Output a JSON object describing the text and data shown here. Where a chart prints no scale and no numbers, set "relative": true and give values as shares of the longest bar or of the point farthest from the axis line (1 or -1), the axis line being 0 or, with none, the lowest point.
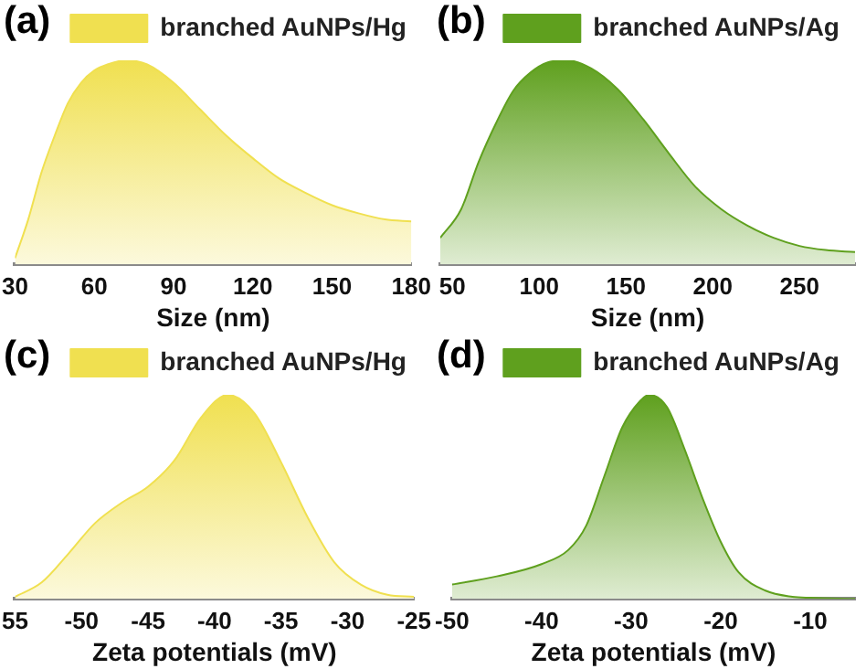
{
  "chart_data": [
    {
      "type": "area",
      "title": "(a)",
      "xlabel": "Size (nm)",
      "relative": true,
      "legend": "top right",
      "grid": false,
      "marker": "none",
      "xlim": [
        30,
        180
      ],
      "xticks": [
        30,
        60,
        90,
        120,
        150,
        180
      ],
      "series": [
        {
          "name": "branched AuNPs/Hg",
          "color": "#f0e050",
          "x": [
            30,
            35,
            40,
            45,
            50,
            55,
            60,
            65,
            72,
            80,
            90,
            100,
            110,
            120,
            130,
            140,
            150,
            160,
            170,
            180
          ],
          "values": [
            0.03,
            0.22,
            0.45,
            0.63,
            0.79,
            0.89,
            0.95,
            0.98,
            1,
            0.98,
            0.89,
            0.76,
            0.63,
            0.52,
            0.42,
            0.35,
            0.29,
            0.25,
            0.22,
            0.21
          ]
        }
      ]
    },
    {
      "type": "area",
      "title": "(b)",
      "xlabel": "Size (nm)",
      "relative": true,
      "legend": "top right",
      "grid": false,
      "marker": "none",
      "xlim": [
        43,
        282
      ],
      "xticks": [
        50,
        100,
        150,
        200,
        250
      ],
      "series": [
        {
          "name": "branched AuNPs/Ag",
          "color": "#5fa01e",
          "x": [
            43,
            55,
            65,
            75,
            85,
            95,
            105,
            116,
            130,
            145,
            160,
            175,
            190,
            205,
            220,
            235,
            250,
            265,
            282
          ],
          "values": [
            0.13,
            0.27,
            0.5,
            0.69,
            0.85,
            0.94,
            0.99,
            1,
            0.96,
            0.86,
            0.71,
            0.54,
            0.38,
            0.27,
            0.19,
            0.13,
            0.09,
            0.07,
            0.06
          ]
        }
      ]
    },
    {
      "type": "area",
      "title": "(c)",
      "xlabel": "Zeta potentials (mV)",
      "relative": true,
      "legend": "top right",
      "grid": false,
      "marker": "none",
      "xlim": [
        -55,
        -25
      ],
      "xticks": [
        {
          "value": -55,
          "label": "55"
        },
        -50,
        -45,
        -40,
        -35,
        -30,
        -25
      ],
      "series": [
        {
          "name": "branched AuNPs/Hg",
          "color": "#f0e050",
          "x": [
            -55,
            -53,
            -51,
            -49,
            -47,
            -45,
            -43,
            -41,
            -39,
            -37,
            -35,
            -33,
            -31,
            -29,
            -27,
            -25
          ],
          "values": [
            0.01,
            0.08,
            0.22,
            0.37,
            0.47,
            0.55,
            0.68,
            0.89,
            1,
            0.91,
            0.67,
            0.4,
            0.18,
            0.07,
            0.02,
            0.01
          ]
        }
      ]
    },
    {
      "type": "area",
      "title": "(d)",
      "xlabel": "Zeta potentials (mV)",
      "relative": true,
      "legend": "top right",
      "grid": false,
      "marker": "none",
      "xlim": [
        -50,
        -5
      ],
      "xticks": [
        -50,
        -40,
        -30,
        -20,
        -10
      ],
      "series": [
        {
          "name": "branched AuNPs/Ag",
          "color": "#5fa01e",
          "x": [
            -50,
            -45,
            -40,
            -37,
            -35,
            -33,
            -31,
            -29,
            -28,
            -26,
            -24,
            -22,
            -20,
            -18,
            -15,
            -12,
            -10,
            -5
          ],
          "values": [
            0.07,
            0.11,
            0.17,
            0.24,
            0.36,
            0.6,
            0.84,
            0.97,
            1,
            0.94,
            0.73,
            0.49,
            0.28,
            0.13,
            0.04,
            0.01,
            0.005,
            0
          ]
        }
      ]
    }
  ]
}
